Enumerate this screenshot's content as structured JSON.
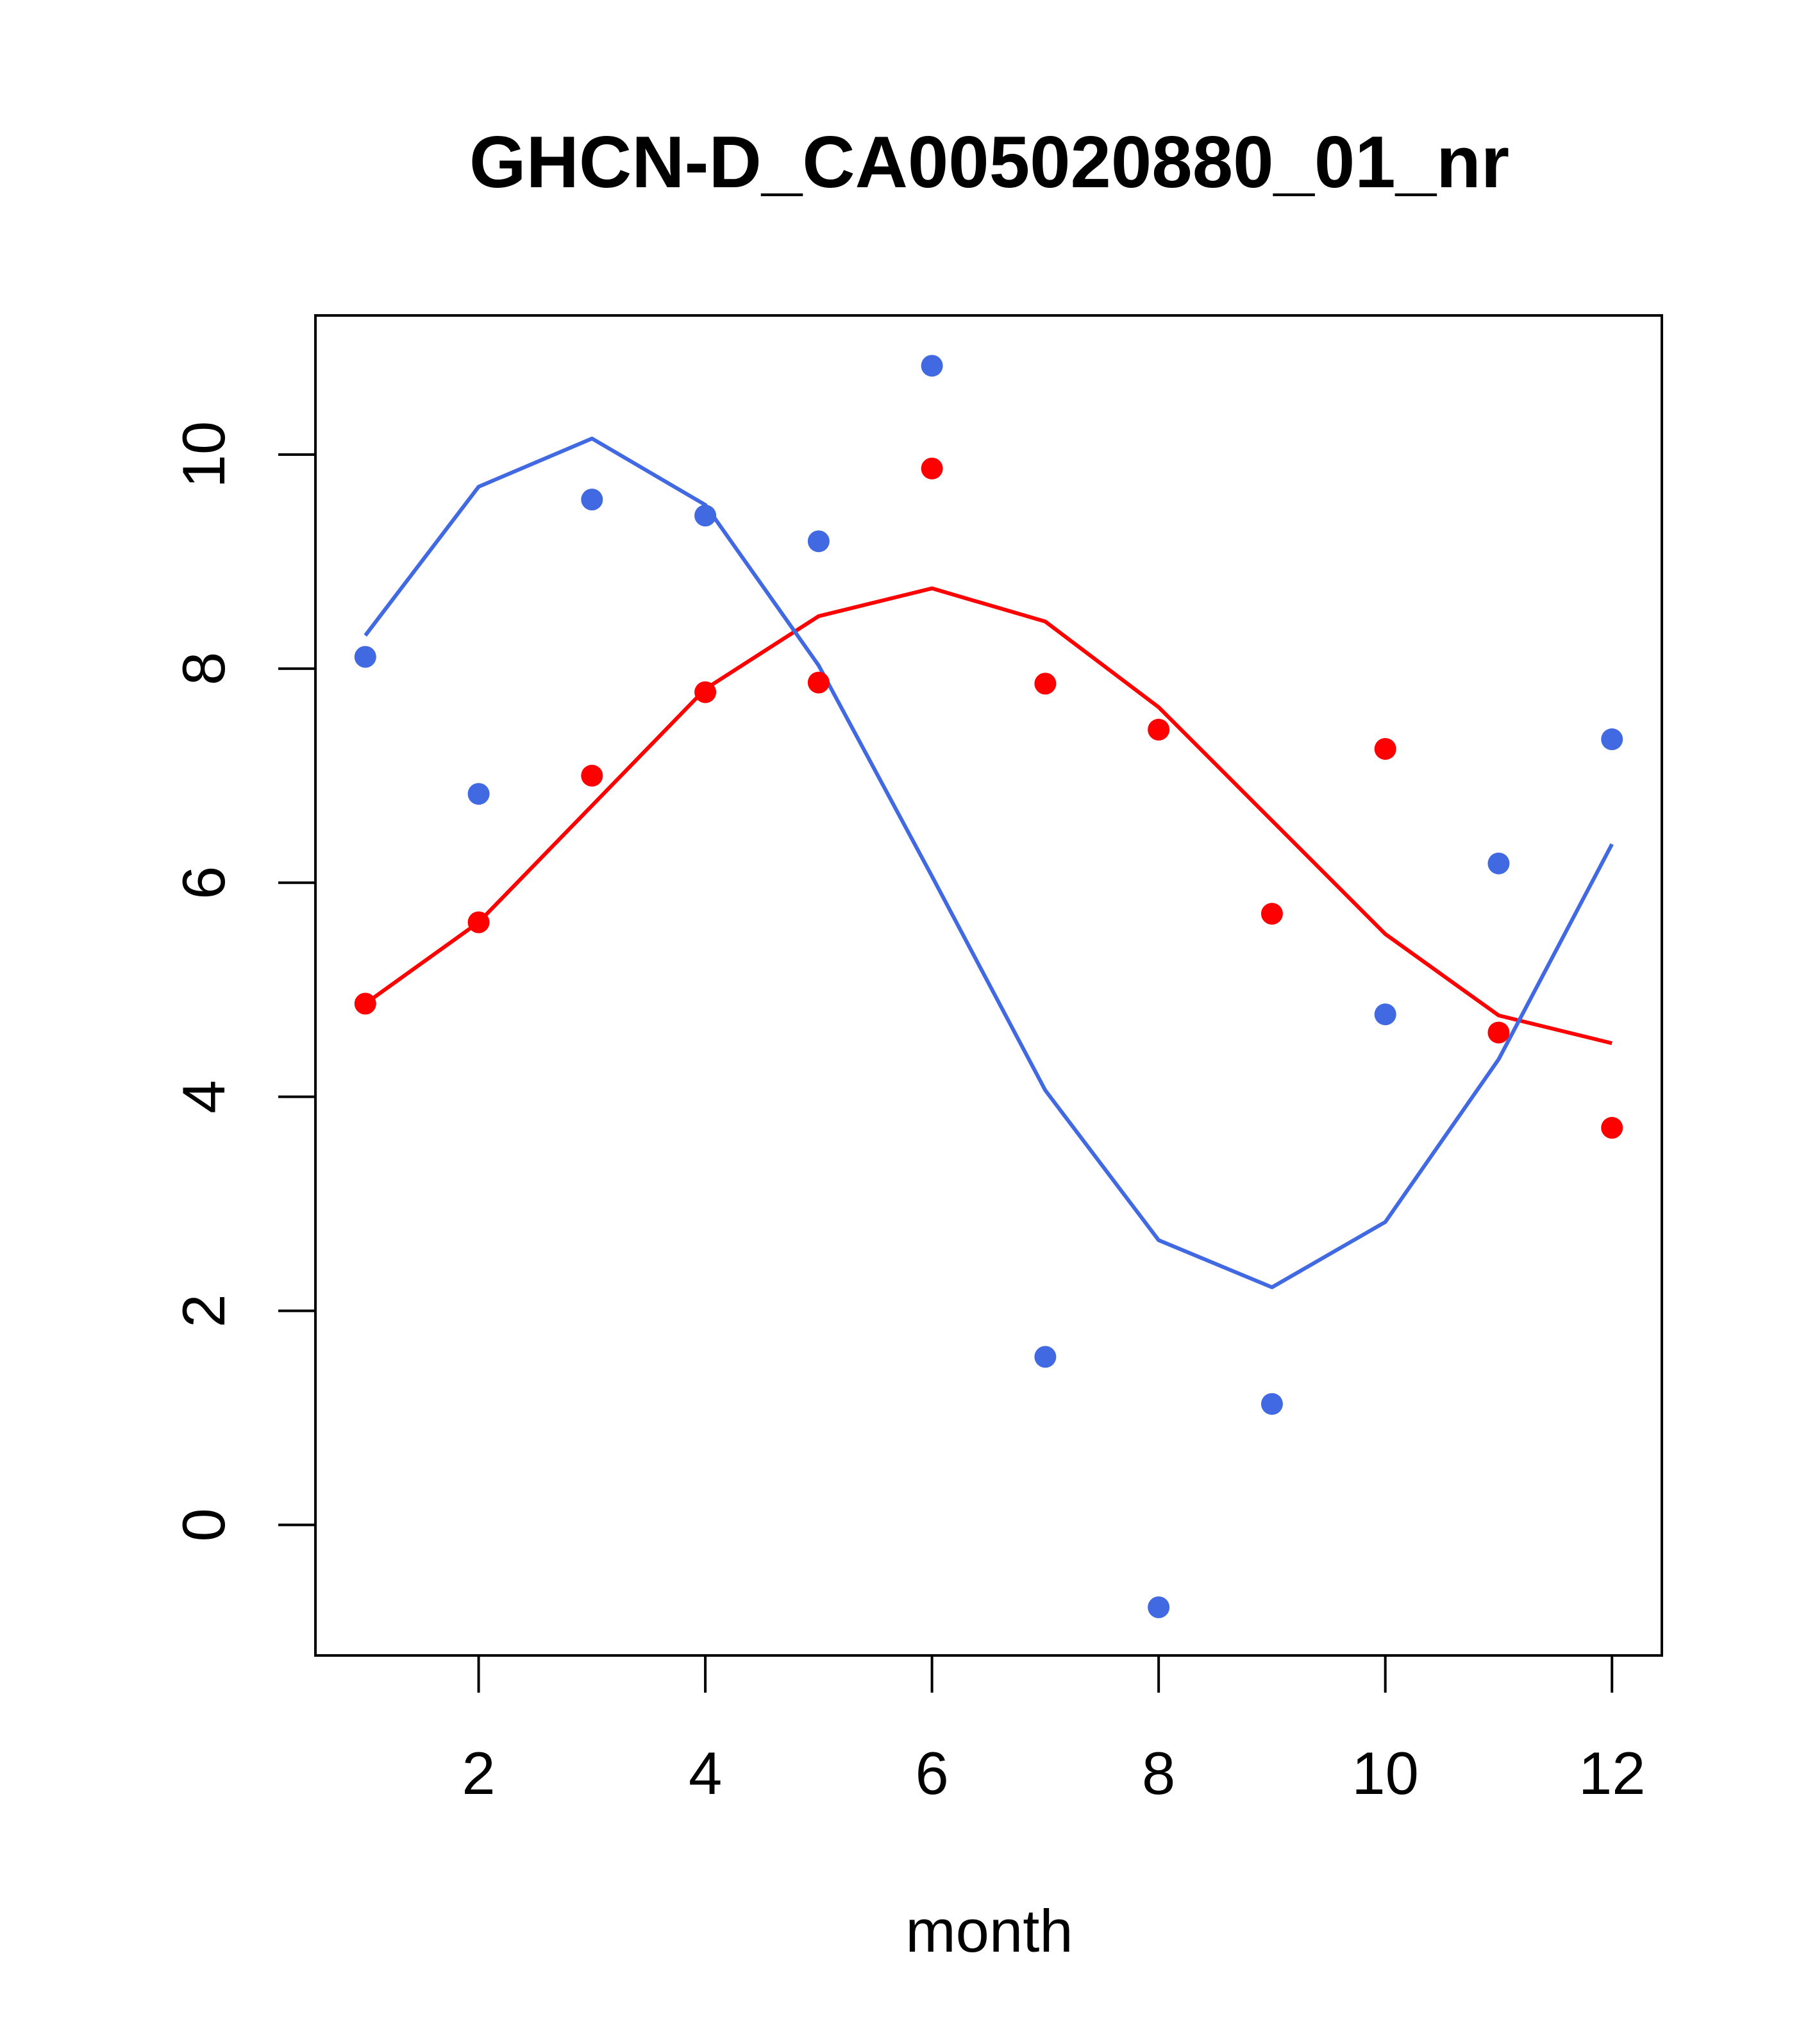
{
  "chart_data": {
    "type": "scatter",
    "title": "GHCN-D_CA005020880_01_nr",
    "xlabel": "month",
    "ylabel": "",
    "xlim": [
      0.56,
      12.44
    ],
    "ylim": [
      -1.22,
      11.3
    ],
    "x_ticks": [
      2,
      4,
      6,
      8,
      10,
      12
    ],
    "y_ticks": [
      0,
      2,
      4,
      6,
      8,
      10
    ],
    "grid": false,
    "legend": "none",
    "series": [
      {
        "color": "#ff0000",
        "x": [
          1,
          2,
          3,
          4,
          5,
          6,
          7,
          8,
          9,
          10,
          11,
          12
        ],
        "points": [
          4.87,
          5.63,
          7.0,
          7.78,
          7.87,
          9.87,
          7.86,
          7.43,
          5.71,
          7.25,
          4.6,
          3.71
        ],
        "fit": [
          4.87,
          5.63,
          6.72,
          7.81,
          8.49,
          8.75,
          8.44,
          7.64,
          6.58,
          5.52,
          4.76,
          4.5
        ]
      },
      {
        "color": "#4169e1",
        "x": [
          1,
          2,
          3,
          4,
          5,
          6,
          7,
          8,
          9,
          10,
          11,
          12
        ],
        "points": [
          8.11,
          6.83,
          9.58,
          9.43,
          9.19,
          10.83,
          1.57,
          -0.77,
          1.13,
          4.77,
          6.18,
          7.34
        ],
        "fit": [
          8.31,
          9.7,
          10.15,
          9.53,
          8.03,
          6.06,
          4.06,
          2.66,
          2.22,
          2.83,
          4.35,
          6.36
        ]
      }
    ]
  }
}
